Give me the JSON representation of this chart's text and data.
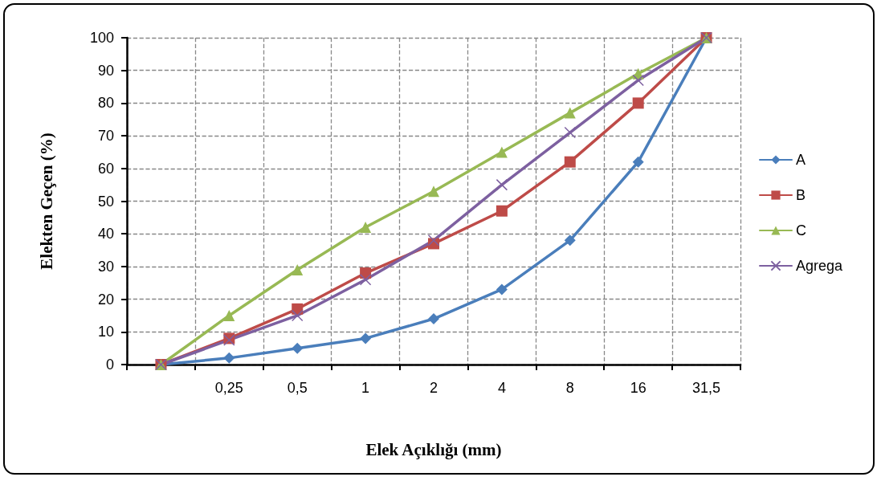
{
  "chart_data": {
    "type": "line",
    "xlabel": "Elek Açıklığı (mm)",
    "ylabel": "Elekten Geçen (%)",
    "categories": [
      null,
      "0,25",
      "0,5",
      "1",
      "2",
      "4",
      "8",
      "16",
      "31,5"
    ],
    "series": [
      {
        "name": "A",
        "color": "#4a7ebb",
        "marker": "diamond",
        "values": [
          0,
          2,
          5,
          8,
          14,
          23,
          38,
          62,
          100
        ]
      },
      {
        "name": "B",
        "color": "#be4b48",
        "marker": "square",
        "values": [
          0,
          8,
          17,
          28,
          37,
          47,
          62,
          80,
          100
        ]
      },
      {
        "name": "C",
        "color": "#98b954",
        "marker": "triangle",
        "values": [
          0,
          15,
          29,
          42,
          53,
          65,
          77,
          89,
          100
        ]
      },
      {
        "name": "Agrega",
        "color": "#7d60a0",
        "marker": "cross",
        "values": [
          0,
          7.5,
          15,
          26,
          38,
          55,
          71,
          87,
          100
        ]
      }
    ],
    "ylim": [
      0,
      100
    ],
    "yticks": [
      0,
      10,
      20,
      30,
      40,
      50,
      60,
      70,
      80,
      90,
      100
    ],
    "grid": true,
    "legend": "right"
  }
}
